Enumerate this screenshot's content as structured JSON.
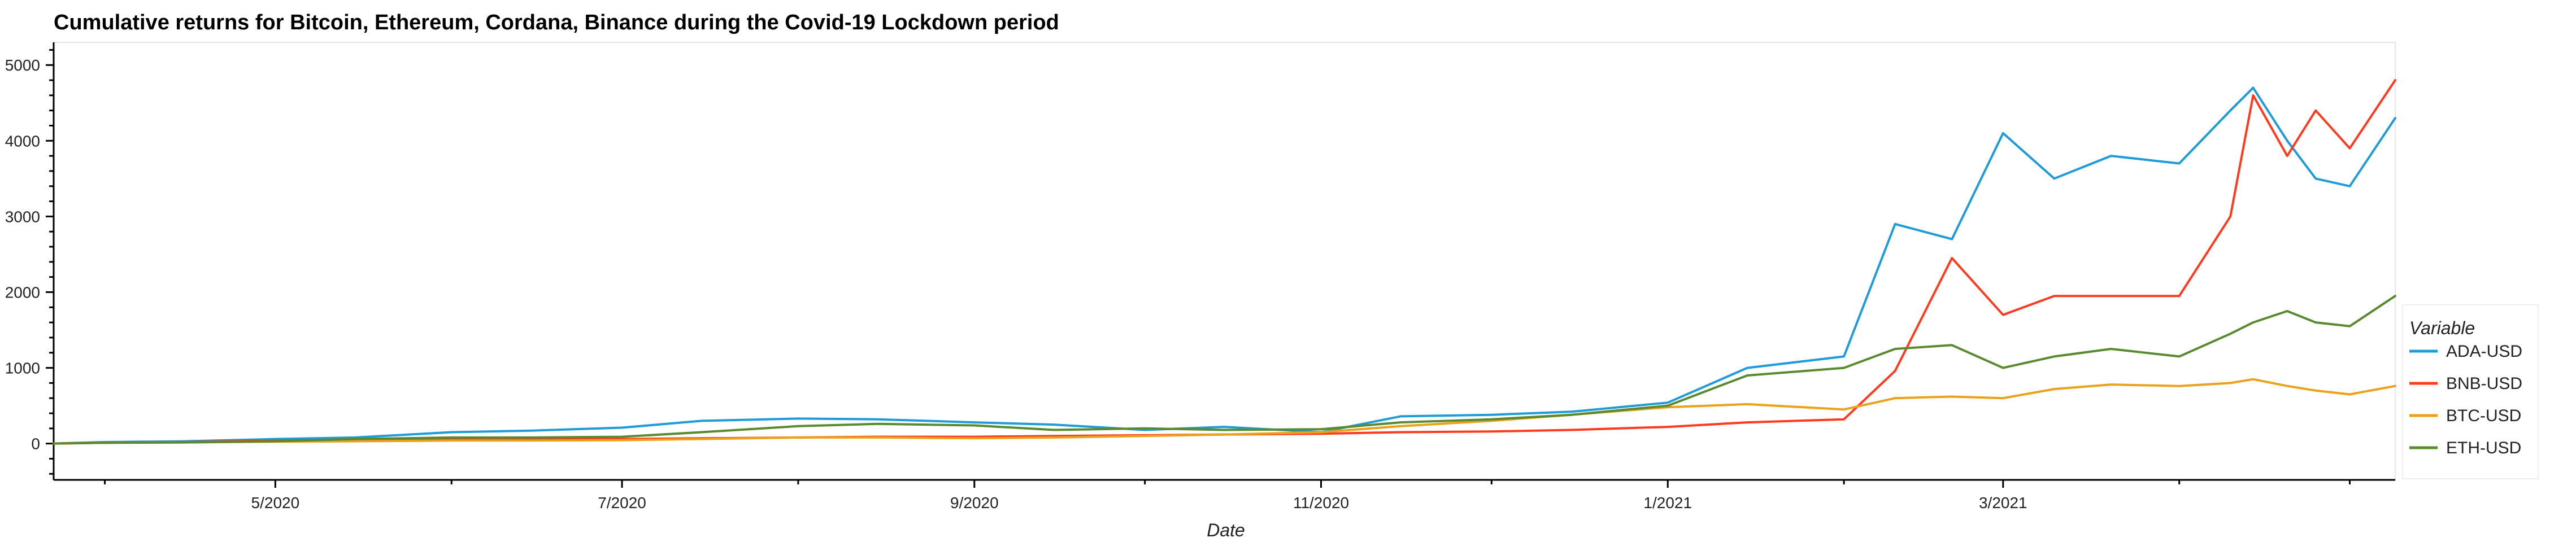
{
  "chart_data": {
    "type": "line",
    "title": "Cumulative returns for Bitcoin, Ethereum, Cordana, Binance during the Covid-19 Lockdown period",
    "xlabel": "Date",
    "ylabel": "",
    "x_tick_labels": [
      "5/2020",
      "7/2020",
      "9/2020",
      "11/2020",
      "1/2021",
      "3/2021"
    ],
    "y_tick_labels": [
      "0",
      "1000",
      "2000",
      "3000",
      "4000",
      "5000"
    ],
    "ylim": [
      -480,
      5300
    ],
    "xlim": [
      "2020-03-23",
      "2021-05-09"
    ],
    "grid": false,
    "legend": {
      "title": "Variable",
      "placement": "right",
      "entries": [
        "ADA-USD",
        "BNB-USD",
        "BTC-USD",
        "ETH-USD"
      ]
    },
    "x": [
      "2020-03-23",
      "2020-04-01",
      "2020-04-15",
      "2020-05-01",
      "2020-05-15",
      "2020-06-01",
      "2020-06-15",
      "2020-07-01",
      "2020-07-15",
      "2020-08-01",
      "2020-08-15",
      "2020-09-01",
      "2020-09-15",
      "2020-10-01",
      "2020-10-15",
      "2020-11-01",
      "2020-11-15",
      "2020-12-01",
      "2020-12-15",
      "2021-01-01",
      "2021-01-15",
      "2021-02-01",
      "2021-02-10",
      "2021-02-20",
      "2021-03-01",
      "2021-03-10",
      "2021-03-20",
      "2021-04-01",
      "2021-04-10",
      "2021-04-14",
      "2021-04-20",
      "2021-04-25",
      "2021-05-01",
      "2021-05-09"
    ],
    "series": [
      {
        "name": "ADA-USD",
        "color": "#1f9bd7",
        "values": [
          0,
          20,
          30,
          60,
          80,
          150,
          170,
          210,
          300,
          330,
          320,
          280,
          250,
          180,
          220,
          150,
          360,
          380,
          420,
          540,
          1000,
          1150,
          2900,
          2700,
          4100,
          3500,
          3800,
          3700,
          4400,
          4700,
          4000,
          3500,
          3400,
          4300
        ]
      },
      {
        "name": "BNB-USD",
        "color": "#ff3b1f",
        "values": [
          0,
          10,
          20,
          40,
          50,
          60,
          60,
          60,
          70,
          80,
          90,
          90,
          100,
          110,
          120,
          130,
          150,
          160,
          180,
          220,
          280,
          320,
          960,
          2450,
          1700,
          1950,
          1950,
          1950,
          3000,
          4600,
          3800,
          4400,
          3900,
          4800
        ]
      },
      {
        "name": "BTC-USD",
        "color": "#e8a21c",
        "values": [
          0,
          10,
          15,
          25,
          30,
          40,
          40,
          45,
          60,
          80,
          80,
          70,
          80,
          100,
          120,
          150,
          230,
          300,
          380,
          480,
          520,
          450,
          600,
          620,
          600,
          720,
          780,
          760,
          800,
          850,
          760,
          700,
          650,
          760
        ]
      },
      {
        "name": "ETH-USD",
        "color": "#5a8a2f",
        "values": [
          0,
          10,
          15,
          30,
          60,
          80,
          80,
          90,
          150,
          230,
          260,
          240,
          180,
          200,
          180,
          190,
          280,
          320,
          380,
          500,
          900,
          1000,
          1250,
          1300,
          1000,
          1150,
          1250,
          1150,
          1450,
          1600,
          1750,
          1600,
          1550,
          1950
        ]
      }
    ]
  }
}
